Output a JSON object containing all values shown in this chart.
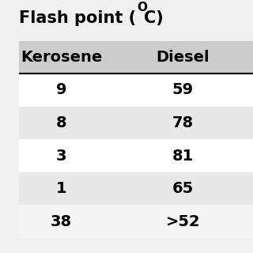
{
  "title_main": "Flash point (",
  "title_superscript": "O",
  "title_suffix": "C)",
  "col1_header": "Kerosene",
  "col2_header": "Diesel",
  "col1_values": [
    "9",
    "8",
    "3",
    "1",
    "38"
  ],
  "col2_values": [
    "59",
    "78",
    "81",
    "65",
    ">52"
  ],
  "row_colors": [
    "#ffffff",
    "#e8e8e8",
    "#ffffff",
    "#e8e8e8",
    "#f5f5f5"
  ],
  "header_bg": "#cccccc",
  "bg_color": "#f0f0f0",
  "text_color": "#000000",
  "title_fontsize": 15,
  "header_fontsize": 14,
  "data_fontsize": 14
}
